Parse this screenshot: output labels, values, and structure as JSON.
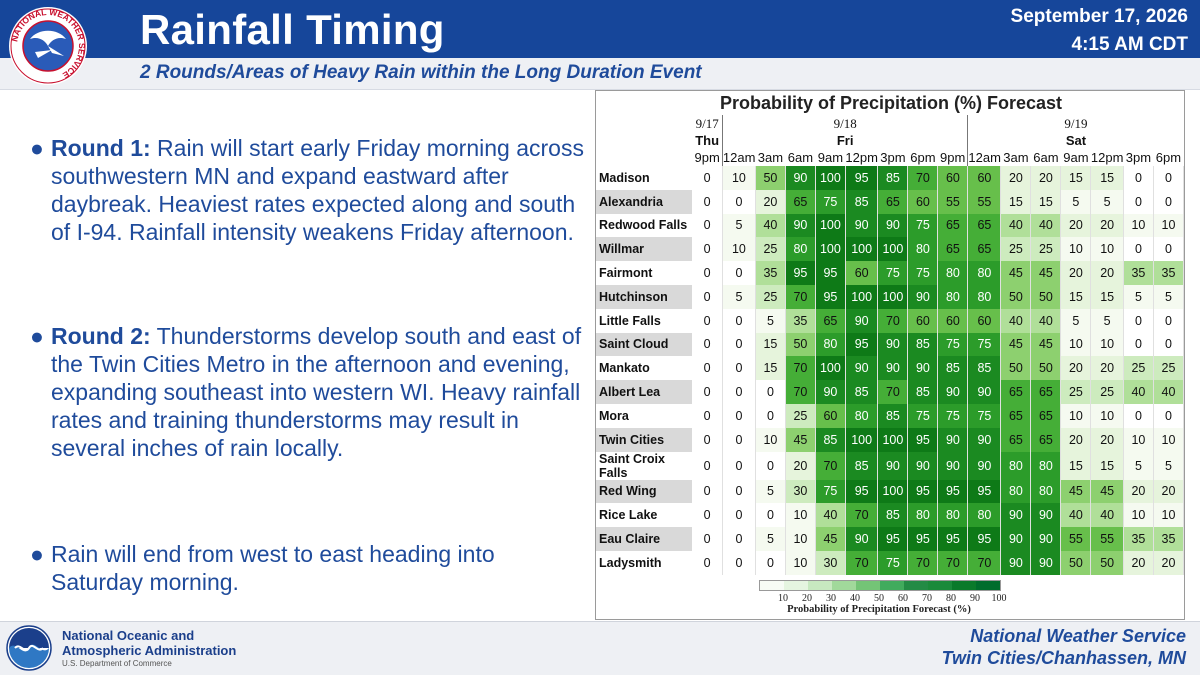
{
  "header": {
    "title": "Rainfall Timing",
    "subtitle": "2 Rounds/Areas of Heavy Rain within the Long Duration Event",
    "date": "September 17, 2026",
    "time": "4:15 AM CDT",
    "logo_text": "NATIONAL WEATHER SERVICE"
  },
  "bullets": [
    {
      "bold": "Round 1:",
      "text": " Rain will start early Friday morning across southwestern MN and expand eastward after daybreak. Heaviest rates expected along and south of I-94. Rainfall intensity weakens Friday afternoon."
    },
    {
      "bold": "Round 2:",
      "text": " Thunderstorms develop south and east of the Twin Cities Metro in the afternoon and evening, expanding southeast into western WI. Heavy rainfall rates and training thunderstorms may result in several inches of rain locally."
    },
    {
      "bold": "",
      "text": "Rain will end from west to east heading into Saturday morning."
    }
  ],
  "table": {
    "title": "Probability of Precipitation (%) Forecast",
    "dates": [
      "9/17",
      "9/18",
      "9/19"
    ],
    "days": [
      "Thu",
      "Fri",
      "Sat"
    ],
    "times": [
      "9pm",
      "12am",
      "3am",
      "6am",
      "9am",
      "12pm",
      "3pm",
      "6pm",
      "9pm",
      "12am",
      "3am",
      "6am",
      "9am",
      "12pm",
      "3pm",
      "6pm"
    ],
    "rows": [
      {
        "location": "Madison",
        "values": [
          0,
          10,
          50,
          90,
          100,
          95,
          85,
          70,
          60,
          60,
          20,
          20,
          15,
          15,
          0,
          0
        ]
      },
      {
        "location": "Alexandria",
        "values": [
          0,
          0,
          20,
          65,
          75,
          85,
          65,
          60,
          55,
          55,
          15,
          15,
          5,
          5,
          0,
          0
        ]
      },
      {
        "location": "Redwood Falls",
        "values": [
          0,
          5,
          40,
          90,
          100,
          90,
          90,
          75,
          65,
          65,
          40,
          40,
          20,
          20,
          10,
          10
        ]
      },
      {
        "location": "Willmar",
        "values": [
          0,
          10,
          25,
          80,
          100,
          100,
          100,
          80,
          65,
          65,
          25,
          25,
          10,
          10,
          0,
          0
        ]
      },
      {
        "location": "Fairmont",
        "values": [
          0,
          0,
          35,
          95,
          95,
          60,
          75,
          75,
          80,
          80,
          45,
          45,
          20,
          20,
          35,
          35
        ]
      },
      {
        "location": "Hutchinson",
        "values": [
          0,
          5,
          25,
          70,
          95,
          100,
          100,
          90,
          80,
          80,
          50,
          50,
          15,
          15,
          5,
          5
        ]
      },
      {
        "location": "Little Falls",
        "values": [
          0,
          0,
          5,
          35,
          65,
          90,
          70,
          60,
          60,
          60,
          40,
          40,
          5,
          5,
          0,
          0
        ]
      },
      {
        "location": "Saint Cloud",
        "values": [
          0,
          0,
          15,
          50,
          80,
          95,
          90,
          85,
          75,
          75,
          45,
          45,
          10,
          10,
          0,
          0
        ]
      },
      {
        "location": "Mankato",
        "values": [
          0,
          0,
          15,
          70,
          100,
          90,
          90,
          90,
          85,
          85,
          50,
          50,
          20,
          20,
          25,
          25
        ]
      },
      {
        "location": "Albert Lea",
        "values": [
          0,
          0,
          0,
          70,
          90,
          85,
          70,
          85,
          90,
          90,
          65,
          65,
          25,
          25,
          40,
          40
        ]
      },
      {
        "location": "Mora",
        "values": [
          0,
          0,
          0,
          25,
          60,
          80,
          85,
          75,
          75,
          75,
          65,
          65,
          10,
          10,
          0,
          0
        ]
      },
      {
        "location": "Twin Cities",
        "values": [
          0,
          0,
          10,
          45,
          85,
          100,
          100,
          95,
          90,
          90,
          65,
          65,
          20,
          20,
          10,
          10
        ]
      },
      {
        "location": "Saint Croix Falls",
        "values": [
          0,
          0,
          0,
          20,
          70,
          85,
          90,
          90,
          90,
          90,
          80,
          80,
          15,
          15,
          5,
          5
        ]
      },
      {
        "location": "Red Wing",
        "values": [
          0,
          0,
          5,
          30,
          75,
          95,
          100,
          95,
          95,
          95,
          80,
          80,
          45,
          45,
          20,
          20
        ]
      },
      {
        "location": "Rice Lake",
        "values": [
          0,
          0,
          0,
          10,
          40,
          70,
          85,
          80,
          80,
          80,
          90,
          90,
          40,
          40,
          10,
          10
        ]
      },
      {
        "location": "Eau Claire",
        "values": [
          0,
          0,
          5,
          10,
          45,
          90,
          95,
          95,
          95,
          95,
          90,
          90,
          55,
          55,
          35,
          35
        ]
      },
      {
        "location": "Ladysmith",
        "values": [
          0,
          0,
          0,
          10,
          30,
          70,
          75,
          70,
          70,
          70,
          90,
          90,
          50,
          50,
          20,
          20
        ]
      }
    ],
    "legend_ticks": [
      "10",
      "20",
      "30",
      "40",
      "50",
      "60",
      "70",
      "80",
      "90",
      "100"
    ],
    "legend_label": "Probability of Precipitation Forecast (%)",
    "legend_colors": [
      "#f7fcf5",
      "#e5f5e0",
      "#c7e9c0",
      "#a1d99b",
      "#74c476",
      "#41ab5d",
      "#238b45",
      "#1a8a3a",
      "#0a7a2a",
      "#006d2c"
    ]
  },
  "footer": {
    "noaa_name_line1": "National Oceanic and",
    "noaa_name_line2": "Atmospheric Administration",
    "noaa_dept": "U.S. Department of Commerce",
    "nws_name": "National Weather Service",
    "nws_office": "Twin Cities/Chanhassen, MN"
  }
}
